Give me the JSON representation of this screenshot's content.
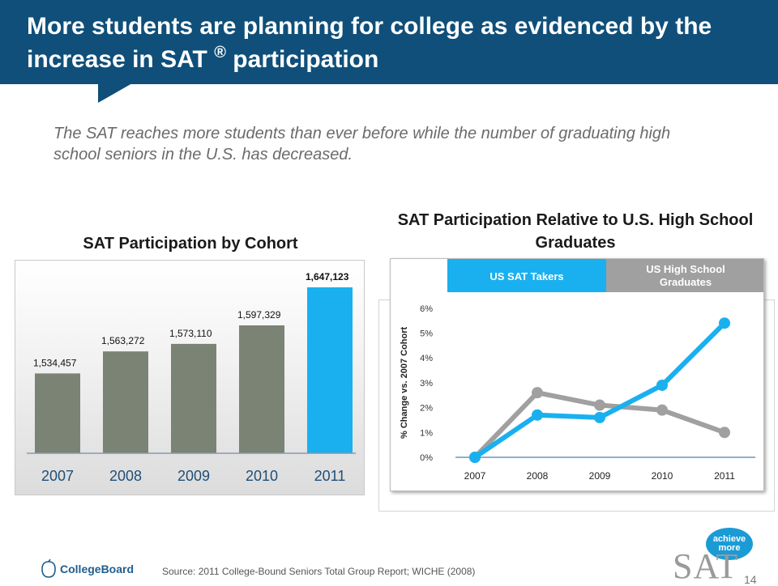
{
  "header": {
    "title": "More students are planning for college as evidenced by the increase in SAT",
    "title_sup": "®",
    "title_end": " participation"
  },
  "subtitle": "The SAT reaches more students than ever before while the number of graduating high school seniors in the U.S. has decreased.",
  "colors": {
    "header": "#0f4f7a",
    "bar": "#7b8374",
    "bar_highlight": "#1ab0ef",
    "sat_line": "#1ab0ef",
    "hs_line": "#a0a0a0"
  },
  "chart_data": [
    {
      "type": "bar",
      "title": "SAT Participation by Cohort",
      "categories": [
        "2007",
        "2008",
        "2009",
        "2010",
        "2011"
      ],
      "values": [
        1534457,
        1563272,
        1573110,
        1597329,
        1647123
      ],
      "value_labels": [
        "1,534,457",
        "1,563,272",
        "1,573,110",
        "1,597,329",
        "1,647,123"
      ],
      "highlight_index": 4,
      "grid": false
    },
    {
      "type": "line",
      "title": "SAT Participation Relative to U.S. High School Graduates",
      "categories": [
        "2007",
        "2008",
        "2009",
        "2010",
        "2011"
      ],
      "ylabel": "% Change vs. 2007 Cohort",
      "ylim": [
        0,
        6
      ],
      "yticks": [
        "0%",
        "1%",
        "2%",
        "3%",
        "4%",
        "5%",
        "6%"
      ],
      "legend_position": "top",
      "series": [
        {
          "name": "US SAT Takers",
          "values": [
            0,
            1.7,
            1.6,
            2.9,
            5.4
          ],
          "color": "#1ab0ef"
        },
        {
          "name": "US High School Graduates",
          "values": [
            0,
            2.6,
            2.1,
            1.9,
            1.0
          ],
          "color": "#a0a0a0"
        }
      ]
    }
  ],
  "footer": {
    "logo_text": "CollegeBoard",
    "source": "Source: 2011 College-Bound Seniors Total Group Report; WICHE (2008)",
    "badge_line1": "achieve",
    "badge_line2": "more",
    "sat_logo": "SAT",
    "page_number": "14"
  }
}
